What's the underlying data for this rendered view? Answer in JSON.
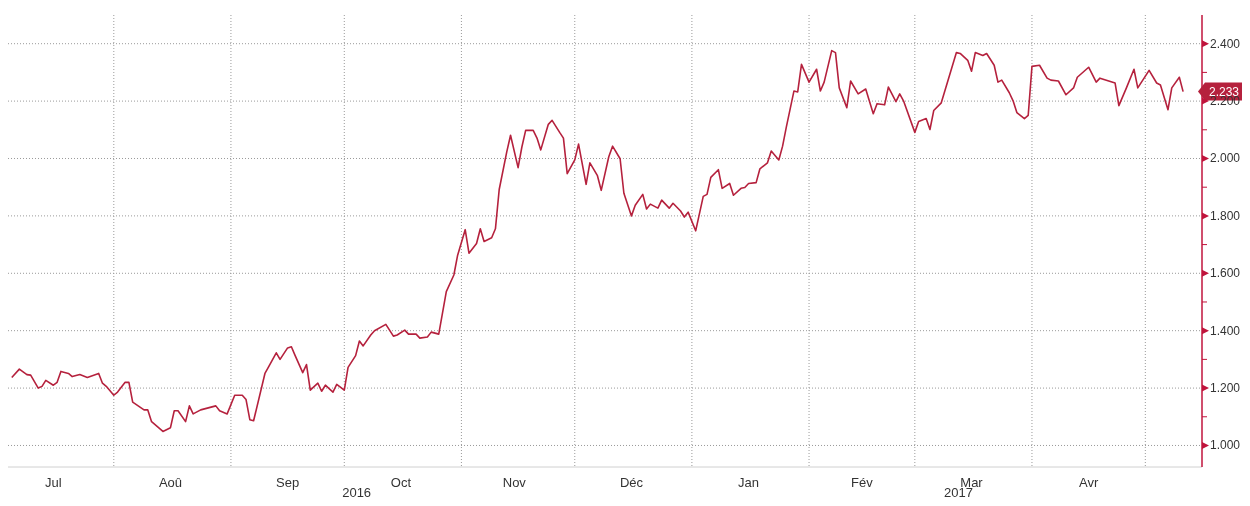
{
  "chart_data": {
    "type": "line",
    "x": [
      "2016-07-05",
      "2016-07-07",
      "2016-07-09",
      "2016-07-10",
      "2016-07-12",
      "2016-07-13",
      "2016-07-14",
      "2016-07-16",
      "2016-07-17",
      "2016-07-18",
      "2016-07-20",
      "2016-07-21",
      "2016-07-23",
      "2016-07-25",
      "2016-07-28",
      "2016-07-29",
      "2016-07-30",
      "2016-08-01",
      "2016-08-02",
      "2016-08-04",
      "2016-08-05",
      "2016-08-06",
      "2016-08-09",
      "2016-08-10",
      "2016-08-11",
      "2016-08-14",
      "2016-08-16",
      "2016-08-17",
      "2016-08-18",
      "2016-08-20",
      "2016-08-21",
      "2016-08-22",
      "2016-08-24",
      "2016-08-28",
      "2016-08-29",
      "2016-08-31",
      "2016-09-02",
      "2016-09-04",
      "2016-09-05",
      "2016-09-06",
      "2016-09-07",
      "2016-09-10",
      "2016-09-11",
      "2016-09-13",
      "2016-09-14",
      "2016-09-16",
      "2016-09-17",
      "2016-09-18",
      "2016-09-20",
      "2016-09-21",
      "2016-09-22",
      "2016-09-24",
      "2016-09-25",
      "2016-09-26",
      "2016-09-28",
      "2016-09-29",
      "2016-10-01",
      "2016-10-02",
      "2016-10-04",
      "2016-10-05",
      "2016-10-06",
      "2016-10-08",
      "2016-10-09",
      "2016-10-12",
      "2016-10-14",
      "2016-10-15",
      "2016-10-17",
      "2016-10-18",
      "2016-10-20",
      "2016-10-21",
      "2016-10-23",
      "2016-10-24",
      "2016-10-26",
      "2016-10-28",
      "2016-10-30",
      "2016-10-31",
      "2016-11-02",
      "2016-11-03",
      "2016-11-05",
      "2016-11-06",
      "2016-11-07",
      "2016-11-09",
      "2016-11-10",
      "2016-11-11",
      "2016-11-13",
      "2016-11-14",
      "2016-11-16",
      "2016-11-17",
      "2016-11-18",
      "2016-11-20",
      "2016-11-21",
      "2016-11-22",
      "2016-11-24",
      "2016-11-25",
      "2016-11-27",
      "2016-11-28",
      "2016-11-29",
      "2016-12-01",
      "2016-12-02",
      "2016-12-04",
      "2016-12-05",
      "2016-12-07",
      "2016-12-08",
      "2016-12-10",
      "2016-12-11",
      "2016-12-13",
      "2016-12-14",
      "2016-12-16",
      "2016-12-17",
      "2016-12-19",
      "2016-12-20",
      "2016-12-21",
      "2016-12-23",
      "2016-12-24",
      "2016-12-26",
      "2016-12-27",
      "2016-12-29",
      "2016-12-30",
      "2016-12-31",
      "2017-01-02",
      "2017-01-04",
      "2017-01-05",
      "2017-01-06",
      "2017-01-08",
      "2017-01-09",
      "2017-01-11",
      "2017-01-12",
      "2017-01-14",
      "2017-01-15",
      "2017-01-16",
      "2017-01-18",
      "2017-01-19",
      "2017-01-21",
      "2017-01-22",
      "2017-01-24",
      "2017-01-25",
      "2017-01-26",
      "2017-01-28",
      "2017-01-29",
      "2017-01-30",
      "2017-02-01",
      "2017-02-03",
      "2017-02-04",
      "2017-02-05",
      "2017-02-07",
      "2017-02-08",
      "2017-02-09",
      "2017-02-11",
      "2017-02-12",
      "2017-02-14",
      "2017-02-16",
      "2017-02-18",
      "2017-02-19",
      "2017-02-21",
      "2017-02-22",
      "2017-02-24",
      "2017-02-25",
      "2017-02-26",
      "2017-03-01",
      "2017-03-02",
      "2017-03-04",
      "2017-03-05",
      "2017-03-06",
      "2017-03-08",
      "2017-03-12",
      "2017-03-13",
      "2017-03-15",
      "2017-03-16",
      "2017-03-17",
      "2017-03-19",
      "2017-03-20",
      "2017-03-22",
      "2017-03-23",
      "2017-03-24",
      "2017-03-26",
      "2017-03-27",
      "2017-03-28",
      "2017-03-30",
      "2017-03-31",
      "2017-04-01",
      "2017-04-03",
      "2017-04-05",
      "2017-04-06",
      "2017-04-08",
      "2017-04-10",
      "2017-04-12",
      "2017-04-13",
      "2017-04-16",
      "2017-04-18",
      "2017-04-19",
      "2017-04-23",
      "2017-04-24",
      "2017-04-26",
      "2017-04-28",
      "2017-04-29",
      "2017-05-02",
      "2017-05-04",
      "2017-05-05",
      "2017-05-07",
      "2017-05-08",
      "2017-05-10",
      "2017-05-11"
    ],
    "series": [
      {
        "color": "#b5213d",
        "values": [
          1.237,
          1.266,
          1.247,
          1.245,
          1.2,
          1.206,
          1.227,
          1.21,
          1.22,
          1.258,
          1.251,
          1.24,
          1.247,
          1.237,
          1.251,
          1.217,
          1.206,
          1.175,
          1.186,
          1.22,
          1.22,
          1.151,
          1.124,
          1.124,
          1.083,
          1.049,
          1.062,
          1.121,
          1.121,
          1.083,
          1.138,
          1.11,
          1.124,
          1.138,
          1.121,
          1.11,
          1.175,
          1.175,
          1.16,
          1.09,
          1.086,
          1.251,
          1.275,
          1.323,
          1.3,
          1.34,
          1.344,
          1.313,
          1.254,
          1.282,
          1.193,
          1.217,
          1.189,
          1.21,
          1.186,
          1.213,
          1.193,
          1.272,
          1.313,
          1.364,
          1.347,
          1.385,
          1.4,
          1.422,
          1.381,
          1.385,
          1.402,
          1.388,
          1.388,
          1.374,
          1.378,
          1.395,
          1.388,
          1.536,
          1.594,
          1.663,
          1.752,
          1.67,
          1.704,
          1.755,
          1.711,
          1.724,
          1.755,
          1.892,
          2.023,
          2.081,
          1.968,
          2.04,
          2.098,
          2.098,
          2.071,
          2.03,
          2.119,
          2.133,
          2.091,
          2.071,
          1.947,
          1.995,
          2.05,
          1.91,
          1.985,
          1.94,
          1.889,
          2.006,
          2.043,
          1.999,
          1.879,
          1.8,
          1.837,
          1.875,
          1.824,
          1.841,
          1.827,
          1.855,
          1.827,
          1.844,
          1.817,
          1.796,
          1.813,
          1.748,
          1.868,
          1.875,
          1.934,
          1.961,
          1.896,
          1.913,
          1.872,
          1.896,
          1.899,
          1.913,
          1.916,
          1.964,
          1.985,
          2.026,
          1.995,
          2.043,
          2.11,
          2.235,
          2.232,
          2.328,
          2.266,
          2.311,
          2.235,
          2.266,
          2.376,
          2.369,
          2.246,
          2.177,
          2.27,
          2.225,
          2.242,
          2.156,
          2.191,
          2.187,
          2.249,
          2.198,
          2.225,
          2.201,
          2.091,
          2.129,
          2.139,
          2.101,
          2.167,
          2.194,
          2.369,
          2.366,
          2.342,
          2.304,
          2.369,
          2.359,
          2.366,
          2.325,
          2.266,
          2.273,
          2.229,
          2.201,
          2.16,
          2.139,
          2.15,
          2.321,
          2.325,
          2.28,
          2.273,
          2.27,
          2.222,
          2.246,
          2.283,
          2.318,
          2.266,
          2.28,
          2.263,
          2.184,
          2.246,
          2.311,
          2.246,
          2.307,
          2.263,
          2.256,
          2.17,
          2.246,
          2.283,
          2.233
        ]
      }
    ],
    "xlim": [
      "2016-07-04",
      "2017-05-16"
    ],
    "xticks": [
      {
        "value": "2016-07-16",
        "label": "Jul"
      },
      {
        "value": "2016-08-01",
        "label": null
      },
      {
        "value": "2016-08-16",
        "label": "Aoû"
      },
      {
        "value": "2016-09-01",
        "label": null
      },
      {
        "value": "2016-09-16",
        "label": "Sep"
      },
      {
        "value": "2016-10-01",
        "label": null
      },
      {
        "value": "2016-10-16",
        "label": "Oct"
      },
      {
        "value": "2016-11-01",
        "label": null
      },
      {
        "value": "2016-11-15",
        "label": "Nov"
      },
      {
        "value": "2016-12-01",
        "label": null
      },
      {
        "value": "2016-12-16",
        "label": "Déc"
      },
      {
        "value": "2017-01-01",
        "label": null
      },
      {
        "value": "2017-01-16",
        "label": "Jan"
      },
      {
        "value": "2017-02-01",
        "label": null
      },
      {
        "value": "2017-02-15",
        "label": "Fév"
      },
      {
        "value": "2017-03-01",
        "label": null
      },
      {
        "value": "2017-03-16",
        "label": "Mar"
      },
      {
        "value": "2017-04-01",
        "label": null
      },
      {
        "value": "2017-04-16",
        "label": "Avr"
      },
      {
        "value": "2017-05-01",
        "label": null
      }
    ],
    "ylim": [
      0.925,
      2.5
    ],
    "yticks": [
      {
        "value": 1.0,
        "label": "1.000"
      },
      {
        "value": 1.1,
        "label": null
      },
      {
        "value": 1.2,
        "label": "1.200"
      },
      {
        "value": 1.3,
        "label": null
      },
      {
        "value": 1.4,
        "label": "1.400"
      },
      {
        "value": 1.5,
        "label": null
      },
      {
        "value": 1.6,
        "label": "1.600"
      },
      {
        "value": 1.7,
        "label": null
      },
      {
        "value": 1.8,
        "label": "1.800"
      },
      {
        "value": 1.9,
        "label": null
      },
      {
        "value": 2.0,
        "label": "2.000"
      },
      {
        "value": 2.1,
        "label": null
      },
      {
        "value": 2.2,
        "label": "2.200"
      },
      {
        "value": 2.3,
        "label": null
      },
      {
        "value": 2.4,
        "label": "2.400"
      }
    ],
    "grid": true,
    "annotations": [
      "2016",
      "2017",
      {
        "text": "2.233",
        "x": "2017-05-11",
        "y": 2.233
      }
    ]
  }
}
